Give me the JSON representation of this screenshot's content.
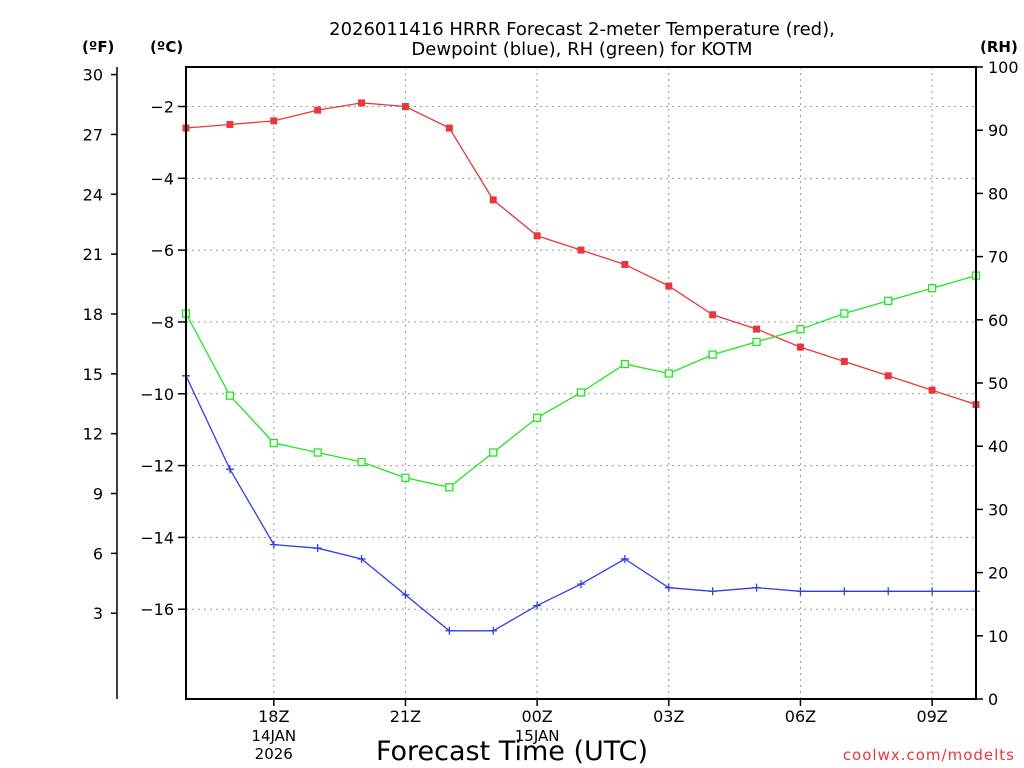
{
  "chart_data": {
    "type": "line",
    "title_lines": [
      "2026011416 HRRR Forecast 2-meter Temperature (red),",
      "Dewpoint (blue), RH (green) for KOTM"
    ],
    "xlabel": "Forecast Time (UTC)",
    "credit": "coolwx.com/modelts",
    "unit_labels": {
      "fahrenheit": "(ºF)",
      "celsius": "(ºC)",
      "rh": "(RH)"
    },
    "x_hours": [
      16,
      17,
      18,
      19,
      20,
      21,
      22,
      23,
      24,
      25,
      26,
      27,
      28,
      29,
      30,
      31,
      32,
      33,
      34
    ],
    "xlim": [
      16,
      34
    ],
    "x_ticks": [
      {
        "hour": 18,
        "label": "18Z",
        "date_lines": [
          "14JAN",
          "2026"
        ]
      },
      {
        "hour": 21,
        "label": "21Z",
        "date_lines": []
      },
      {
        "hour": 24,
        "label": "00Z",
        "date_lines": [
          "15JAN"
        ]
      },
      {
        "hour": 27,
        "label": "03Z",
        "date_lines": []
      },
      {
        "hour": 30,
        "label": "06Z",
        "date_lines": []
      },
      {
        "hour": 33,
        "label": "09Z",
        "date_lines": []
      }
    ],
    "celsius_axis": {
      "lim": [
        -18.5,
        -0.9
      ],
      "ticks": [
        -16,
        -14,
        -12,
        -10,
        -8,
        -6,
        -4,
        -2
      ],
      "tick_labels": [
        "−16",
        "−14",
        "−12",
        "−10",
        "−8",
        "−6",
        "−4",
        "−2"
      ]
    },
    "fahrenheit_axis": {
      "ticks": [
        3,
        6,
        9,
        12,
        15,
        18,
        21,
        24,
        27,
        30
      ],
      "tick_labels": [
        "3",
        "6",
        "9",
        "12",
        "15",
        "18",
        "21",
        "24",
        "27",
        "30"
      ]
    },
    "rh_axis": {
      "lim": [
        0,
        100
      ],
      "ticks": [
        0,
        10,
        20,
        30,
        40,
        50,
        60,
        70,
        80,
        90,
        100
      ],
      "tick_labels": [
        "0",
        "10",
        "20",
        "30",
        "40",
        "50",
        "60",
        "70",
        "80",
        "90",
        "100"
      ]
    },
    "series": [
      {
        "name": "Temperature",
        "axis": "celsius",
        "color": "#e8383d",
        "marker": "filled-square",
        "values": [
          -2.6,
          -2.5,
          -2.4,
          -2.1,
          -1.9,
          -2.0,
          -2.6,
          -4.6,
          -5.6,
          -6.0,
          -6.4,
          -7.0,
          -7.8,
          -8.2,
          -8.7,
          -9.1,
          -9.5,
          -9.9,
          -10.3
        ]
      },
      {
        "name": "Dewpoint",
        "axis": "celsius",
        "color": "#2e3fe8",
        "marker": "plus",
        "values": [
          -9.5,
          -12.1,
          -14.2,
          -14.3,
          -14.6,
          -15.6,
          -16.6,
          -16.6,
          -15.9,
          -15.3,
          -14.6,
          -15.4,
          -15.5,
          -15.4,
          -15.5,
          -15.5,
          -15.5,
          -15.5,
          -15.5
        ]
      },
      {
        "name": "Relative Humidity",
        "axis": "rh",
        "color": "#1ee81e",
        "marker": "open-square",
        "values": [
          61,
          48,
          40.5,
          39,
          37.5,
          35,
          33.5,
          39,
          44.5,
          48.5,
          53,
          51.5,
          54.5,
          56.5,
          58.5,
          61,
          63,
          65,
          67
        ]
      }
    ]
  }
}
